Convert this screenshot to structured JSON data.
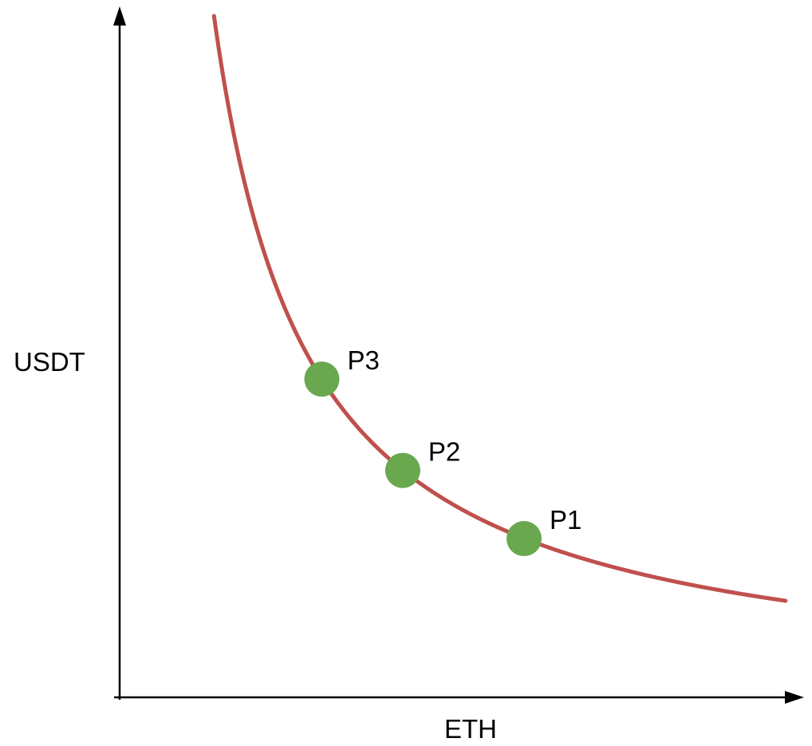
{
  "chart_data": {
    "type": "line",
    "xlabel": "ETH",
    "ylabel": "USDT",
    "grid": false,
    "legend": "none",
    "curve_form": "x * y = k (constant product)",
    "k": 14,
    "xlim": [
      0,
      10
    ],
    "ylim": [
      0,
      10
    ],
    "series": [
      {
        "x": [
          1.4,
          2.0,
          3.0,
          4.0,
          5.0,
          6.0,
          7.0,
          8.0,
          9.0,
          10.0
        ],
        "y": [
          10.0,
          7.0,
          4.67,
          3.5,
          2.8,
          2.33,
          2.0,
          1.75,
          1.56,
          1.4
        ]
      }
    ],
    "points": [
      {
        "label": "P3",
        "x": 3.0,
        "y": 4.67
      },
      {
        "label": "P2",
        "x": 4.2,
        "y": 3.33
      },
      {
        "label": "P1",
        "x": 6.0,
        "y": 2.33
      }
    ],
    "colors": {
      "curve": "#c0504d",
      "points": "#6aa84f",
      "axes": "#000000"
    }
  }
}
